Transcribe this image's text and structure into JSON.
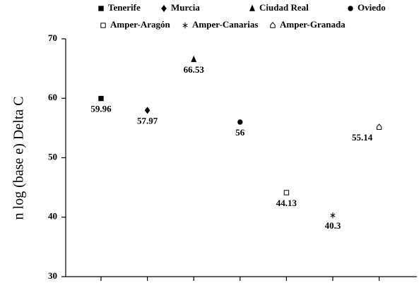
{
  "chart_data": {
    "type": "scatter",
    "y_label": "n log (base e) Delta C",
    "categories": [
      null,
      null,
      null,
      null,
      null,
      null,
      null
    ],
    "series": [
      {
        "name": "Tenerife",
        "marker": "square",
        "color": "#000000",
        "values": [
          59.96,
          null,
          null,
          null,
          null,
          null,
          null
        ]
      },
      {
        "name": "Murcia",
        "marker": "diamond",
        "color": "#000000",
        "values": [
          null,
          57.97,
          null,
          null,
          null,
          null,
          null
        ]
      },
      {
        "name": "Ciudad Real",
        "marker": "triangle",
        "color": "#000000",
        "values": [
          null,
          null,
          66.53,
          null,
          null,
          null,
          null
        ]
      },
      {
        "name": "Oviedo",
        "marker": "circle",
        "color": "#000000",
        "values": [
          null,
          null,
          null,
          56,
          null,
          null,
          null
        ]
      },
      {
        "name": "Amper-Aragón",
        "marker": "open-square",
        "color": "#000000",
        "values": [
          null,
          null,
          null,
          null,
          44.13,
          null,
          null
        ]
      },
      {
        "name": "Amper-Canarias",
        "marker": "star",
        "color": "#000000",
        "values": [
          null,
          null,
          null,
          null,
          null,
          40.3,
          null
        ]
      },
      {
        "name": "Amper-Granada",
        "marker": "open-house",
        "color": "#000000",
        "values": [
          null,
          null,
          null,
          null,
          null,
          null,
          55.14
        ]
      }
    ],
    "ylim": [
      30,
      70
    ],
    "yticks": [
      30,
      40,
      50,
      60,
      70
    ],
    "grid": false,
    "legend": "top"
  }
}
